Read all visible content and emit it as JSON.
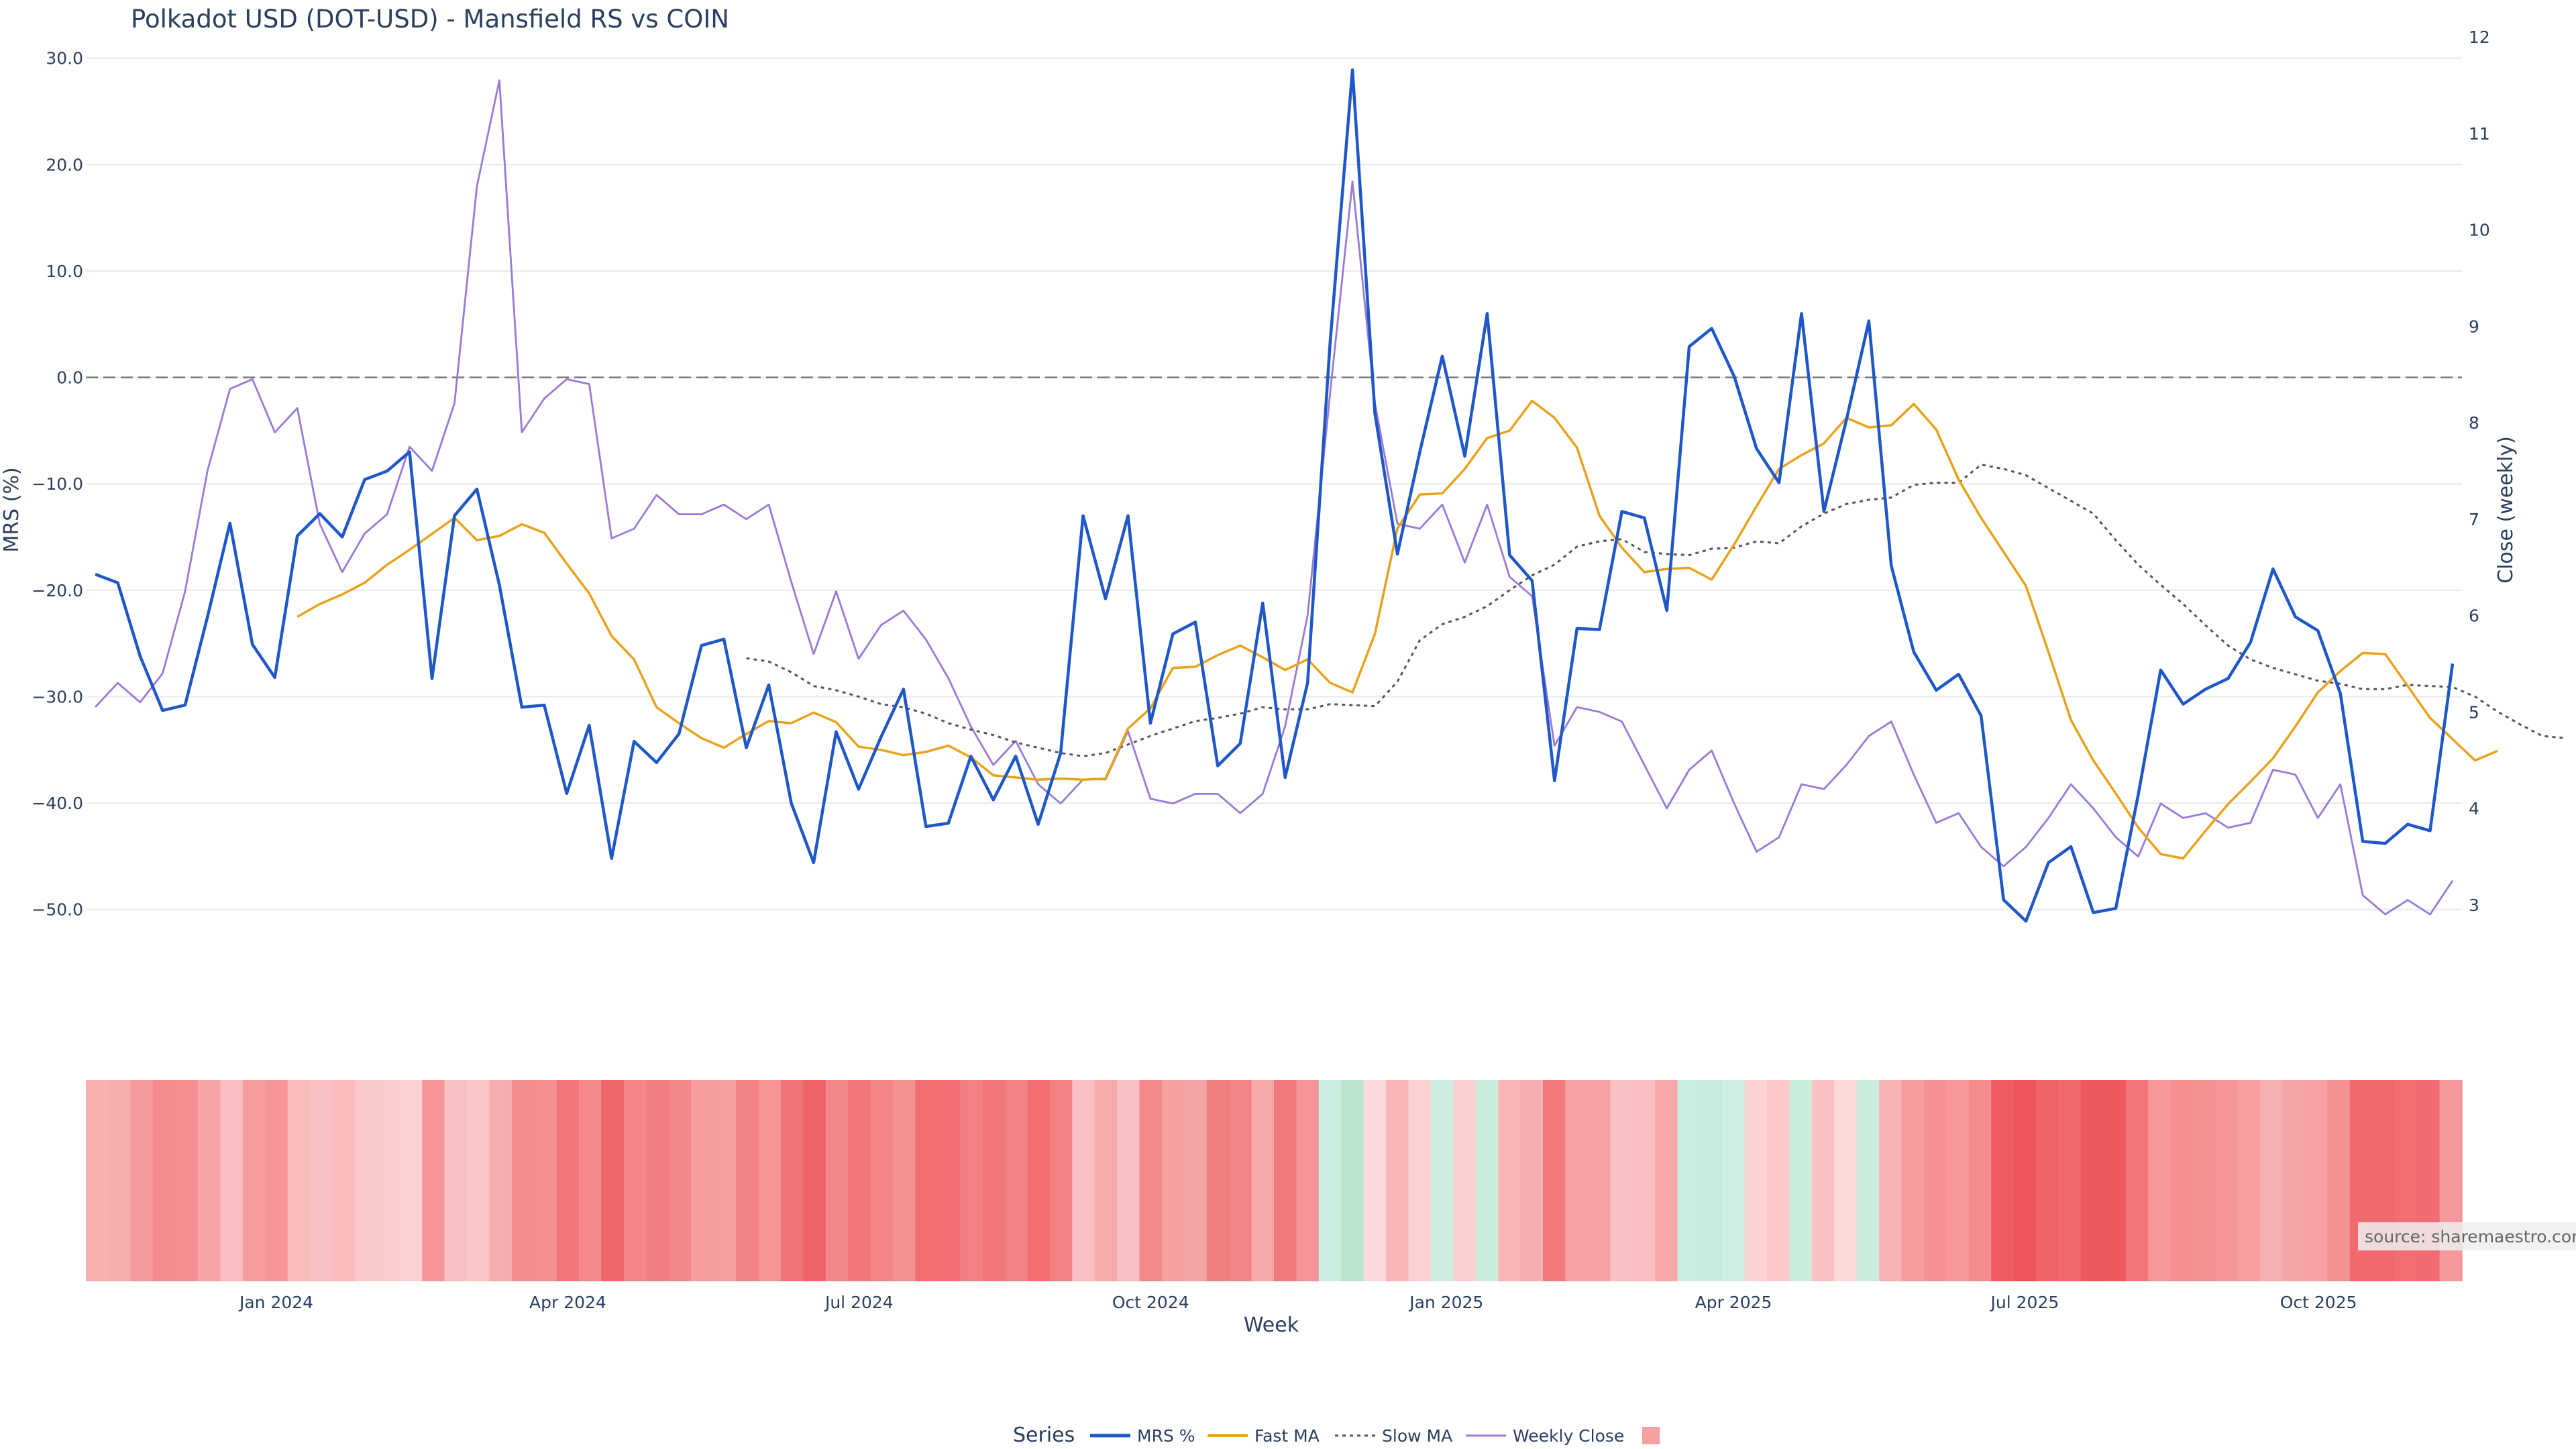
{
  "chart_data": {
    "type": "line",
    "title": "Polkadot USD (DOT-USD) - Mansfield RS vs COIN",
    "xlabel": "Week",
    "ylabel": "MRS (%)",
    "y2label": "Close (weekly)",
    "ylim": [
      -55,
      32
    ],
    "y2lim": [
      2.4,
      12
    ],
    "yticks": [
      30,
      20,
      10,
      0,
      -10,
      -20,
      -30,
      -40,
      -50
    ],
    "ytick_labels": [
      "30.0",
      "20.0",
      "10.0",
      "0.0",
      "−10.0",
      "−20.0",
      "−30.0",
      "−40.0",
      "−50.0"
    ],
    "y2ticks": [
      12,
      11,
      10,
      9,
      8,
      7,
      6,
      5,
      4,
      3
    ],
    "y2tick_labels": [
      "12",
      "11",
      "10",
      "9",
      "8",
      "7",
      "6",
      "5",
      "4",
      "3"
    ],
    "x_start": "2023-11-12",
    "x_step_days": 7,
    "x_ticks": [
      {
        "label": "Jan 2024",
        "week": 8.5
      },
      {
        "label": "Apr 2024",
        "week": 21.5
      },
      {
        "label": "Jul 2024",
        "week": 34.5
      },
      {
        "label": "Oct 2024",
        "week": 47.5
      },
      {
        "label": "Jan 2025",
        "week": 60.7
      },
      {
        "label": "Apr 2025",
        "week": 73.5
      },
      {
        "label": "Jul 2025",
        "week": 86.5
      },
      {
        "label": "Oct 2025",
        "week": 99.6
      }
    ],
    "zero_line": 0,
    "series": [
      {
        "name": "MRS %",
        "color": "#1f57c8",
        "axis": "y",
        "style": "solid",
        "values": [
          -18.5,
          -19.3,
          -26.2,
          -31.3,
          -30.8,
          -22.5,
          -13.7,
          -25.1,
          -28.2,
          -14.9,
          -12.8,
          -15.0,
          -9.6,
          -8.8,
          -7.0,
          -28.3,
          -13.0,
          -10.5,
          -19.5,
          -31.0,
          -30.8,
          -39.1,
          -32.7,
          -45.2,
          -34.2,
          -36.2,
          -33.5,
          -25.2,
          -24.6,
          -34.8,
          -28.9,
          -40.0,
          -45.6,
          -33.3,
          -38.7,
          -33.8,
          -29.3,
          -42.2,
          -41.9,
          -35.6,
          -39.7,
          -35.6,
          -42.0,
          -35.3,
          -13.0,
          -20.8,
          -13.0,
          -32.5,
          -24.1,
          -23.0,
          -36.5,
          -34.4,
          -21.2,
          -37.6,
          -28.7,
          3.2,
          28.9,
          -3.4,
          -16.6,
          -7.0,
          2.0,
          -7.4,
          6.0,
          -16.7,
          -19.1,
          -37.9,
          -23.6,
          -23.7,
          -12.6,
          -13.2,
          -21.9,
          2.9,
          4.6,
          0.1,
          -6.7,
          -9.9,
          6.0,
          -12.6,
          -4.0,
          5.3,
          -17.7,
          -25.8,
          -29.4,
          -27.9,
          -31.8,
          -49.1,
          -51.1,
          -45.6,
          -44.1,
          -50.3,
          -49.9,
          -39.2,
          -27.5,
          -30.7,
          -29.3,
          -28.3,
          -24.9,
          -18.0,
          -22.5,
          -23.8,
          -29.7,
          -43.6,
          -43.8,
          -42.0,
          -42.6,
          -26.9
        ]
      },
      {
        "name": "Fast MA",
        "color": "#e8a21c",
        "axis": "y",
        "style": "solid",
        "start": 9,
        "values": [
          -22.5,
          -21.3,
          -20.4,
          -19.3,
          -17.6,
          -16.2,
          -14.7,
          -13.2,
          -15.3,
          -14.9,
          -13.8,
          -14.6,
          -17.5,
          -20.3,
          -24.3,
          -26.5,
          -31.0,
          -32.5,
          -33.9,
          -34.8,
          -33.5,
          -32.3,
          -32.5,
          -31.5,
          -32.4,
          -34.7,
          -35.0,
          -35.5,
          -35.2,
          -34.6,
          -35.7,
          -37.4,
          -37.6,
          -37.8,
          -37.7,
          -37.8,
          -37.7,
          -33.0,
          -31.1,
          -27.3,
          -27.2,
          -26.1,
          -25.2,
          -26.3,
          -27.5,
          -26.5,
          -28.7,
          -29.6,
          -24.1,
          -14.2,
          -11.0,
          -10.9,
          -8.6,
          -5.7,
          -5.0,
          -2.2,
          -3.8,
          -6.6,
          -13.0,
          -16.0,
          -18.3,
          -18.0,
          -17.9,
          -19.0,
          -15.7,
          -12.1,
          -8.6,
          -7.3,
          -6.2,
          -3.8,
          -4.7,
          -4.5,
          -2.5,
          -4.9,
          -9.6,
          -13.2,
          -16.4,
          -19.6,
          -25.8,
          -32.2,
          -36.0,
          -39.1,
          -42.3,
          -44.8,
          -45.2,
          -42.6,
          -40.1,
          -38.0,
          -35.8,
          -32.8,
          -29.6,
          -27.6,
          -25.9,
          -26.0,
          -29.0,
          -32.0,
          -34.0,
          -36.0,
          -35.1
        ]
      },
      {
        "name": "Slow MA",
        "color": "#555555",
        "axis": "y",
        "style": "dotted",
        "start": 29,
        "values": [
          -26.4,
          -26.7,
          -27.7,
          -29.0,
          -29.4,
          -30.0,
          -30.7,
          -31.0,
          -31.6,
          -32.5,
          -33.1,
          -33.6,
          -34.3,
          -34.8,
          -35.3,
          -35.6,
          -35.3,
          -34.5,
          -33.7,
          -33.0,
          -32.3,
          -32.0,
          -31.6,
          -31.0,
          -31.2,
          -31.2,
          -30.7,
          -30.8,
          -30.9,
          -28.6,
          -24.7,
          -23.2,
          -22.5,
          -21.5,
          -20.0,
          -18.6,
          -17.6,
          -15.9,
          -15.4,
          -15.2,
          -16.4,
          -16.6,
          -16.7,
          -16.1,
          -16.0,
          -15.4,
          -15.6,
          -14.0,
          -12.8,
          -11.9,
          -11.5,
          -11.3,
          -10.1,
          -9.9,
          -9.9,
          -8.2,
          -8.6,
          -9.2,
          -10.4,
          -11.6,
          -12.8,
          -15.3,
          -17.6,
          -19.5,
          -21.3,
          -23.3,
          -25.2,
          -26.5,
          -27.3,
          -27.9,
          -28.5,
          -28.8,
          -29.3,
          -29.3,
          -28.9,
          -29.0,
          -29.1,
          -30.0,
          -31.4,
          -32.6,
          -33.7,
          -33.9
        ]
      },
      {
        "name": "Weekly Close",
        "color": "#9b79d6",
        "axis": "y2",
        "style": "solid",
        "values": [
          5.05,
          5.3,
          5.1,
          5.4,
          6.25,
          7.5,
          8.35,
          8.45,
          7.9,
          8.15,
          6.95,
          6.45,
          6.85,
          7.05,
          7.75,
          7.5,
          8.2,
          10.45,
          11.55,
          7.9,
          8.25,
          8.45,
          8.4,
          6.8,
          6.9,
          7.25,
          7.05,
          7.05,
          7.15,
          7.0,
          7.15,
          6.35,
          5.6,
          6.25,
          5.55,
          5.9,
          6.05,
          5.75,
          5.35,
          4.85,
          4.45,
          4.7,
          4.25,
          4.05,
          4.3,
          4.3,
          4.8,
          4.1,
          4.05,
          4.15,
          4.15,
          3.95,
          4.15,
          4.85,
          6.0,
          8.3,
          10.5,
          8.2,
          6.95,
          6.9,
          7.15,
          6.55,
          7.15,
          6.4,
          6.2,
          4.65,
          5.05,
          5.0,
          4.9,
          4.45,
          4.0,
          4.4,
          4.6,
          4.05,
          3.55,
          3.7,
          4.25,
          4.2,
          4.45,
          4.75,
          4.9,
          4.35,
          3.85,
          3.95,
          3.6,
          3.4,
          3.6,
          3.9,
          4.25,
          4.0,
          3.7,
          3.5,
          4.05,
          3.9,
          3.95,
          3.8,
          3.85,
          4.4,
          4.35,
          3.9,
          4.25,
          3.1,
          2.9,
          3.05,
          2.9,
          3.25
        ]
      }
    ],
    "heatmap": {
      "name": "MRS %",
      "colorscale": "red-white-green",
      "values_from": "MRS %"
    },
    "legend": {
      "title": "Series",
      "position": "bottom-center",
      "items": [
        "MRS %",
        "Fast MA",
        "Slow MA",
        "Weekly Close",
        ""
      ],
      "swatch_color": "#f4a0a4"
    }
  },
  "source_label": "source: sharemaestro.com"
}
